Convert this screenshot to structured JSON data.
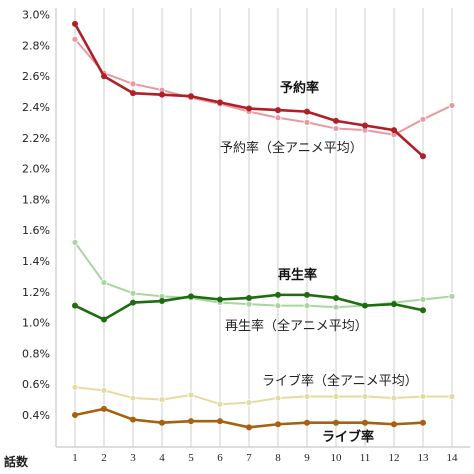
{
  "chart_data": {
    "type": "line",
    "x": [
      1,
      2,
      3,
      4,
      5,
      6,
      7,
      8,
      9,
      10,
      11,
      12,
      13,
      14
    ],
    "xlabel": "話数",
    "ylabel": "",
    "title": "",
    "yticks": [
      "0.4%",
      "0.6%",
      "0.8%",
      "1.0%",
      "1.2%",
      "1.4%",
      "1.6%",
      "1.8%",
      "2.0%",
      "2.2%",
      "2.4%",
      "2.6%",
      "2.8%",
      "3.0%"
    ],
    "ylim": [
      0.3,
      3.0
    ],
    "grid": "vertical",
    "series": [
      {
        "name": "予約率（全アニメ平均）",
        "color": "#e89aa0",
        "label_bold": false,
        "values": [
          2.84,
          2.62,
          2.55,
          2.51,
          2.46,
          2.42,
          2.37,
          2.33,
          2.3,
          2.26,
          2.25,
          2.22,
          2.32,
          2.41
        ]
      },
      {
        "name": "予約率",
        "color": "#b01e26",
        "label_bold": true,
        "values": [
          2.94,
          2.6,
          2.49,
          2.48,
          2.47,
          2.43,
          2.39,
          2.38,
          2.37,
          2.31,
          2.28,
          2.25,
          2.08,
          null
        ]
      },
      {
        "name": "再生率（全アニメ平均）",
        "color": "#a8d5a0",
        "label_bold": false,
        "values": [
          1.52,
          1.26,
          1.19,
          1.17,
          1.16,
          1.13,
          1.12,
          1.11,
          1.11,
          1.1,
          1.11,
          1.13,
          1.15,
          1.17
        ]
      },
      {
        "name": "再生率",
        "color": "#1e6b12",
        "label_bold": true,
        "values": [
          1.11,
          1.02,
          1.13,
          1.14,
          1.17,
          1.15,
          1.16,
          1.18,
          1.18,
          1.16,
          1.11,
          1.12,
          1.08,
          null
        ]
      },
      {
        "name": "ライブ率（全アニメ平均）",
        "color": "#e8d9a0",
        "label_bold": false,
        "values": [
          0.58,
          0.56,
          0.51,
          0.5,
          0.53,
          0.47,
          0.48,
          0.51,
          0.52,
          0.52,
          0.52,
          0.51,
          0.52,
          0.52
        ]
      },
      {
        "name": "ライブ率",
        "color": "#a8600e",
        "label_bold": true,
        "values": [
          0.4,
          0.44,
          0.37,
          0.35,
          0.36,
          0.36,
          0.32,
          0.34,
          0.35,
          0.35,
          0.35,
          0.34,
          0.35,
          null
        ]
      }
    ]
  }
}
